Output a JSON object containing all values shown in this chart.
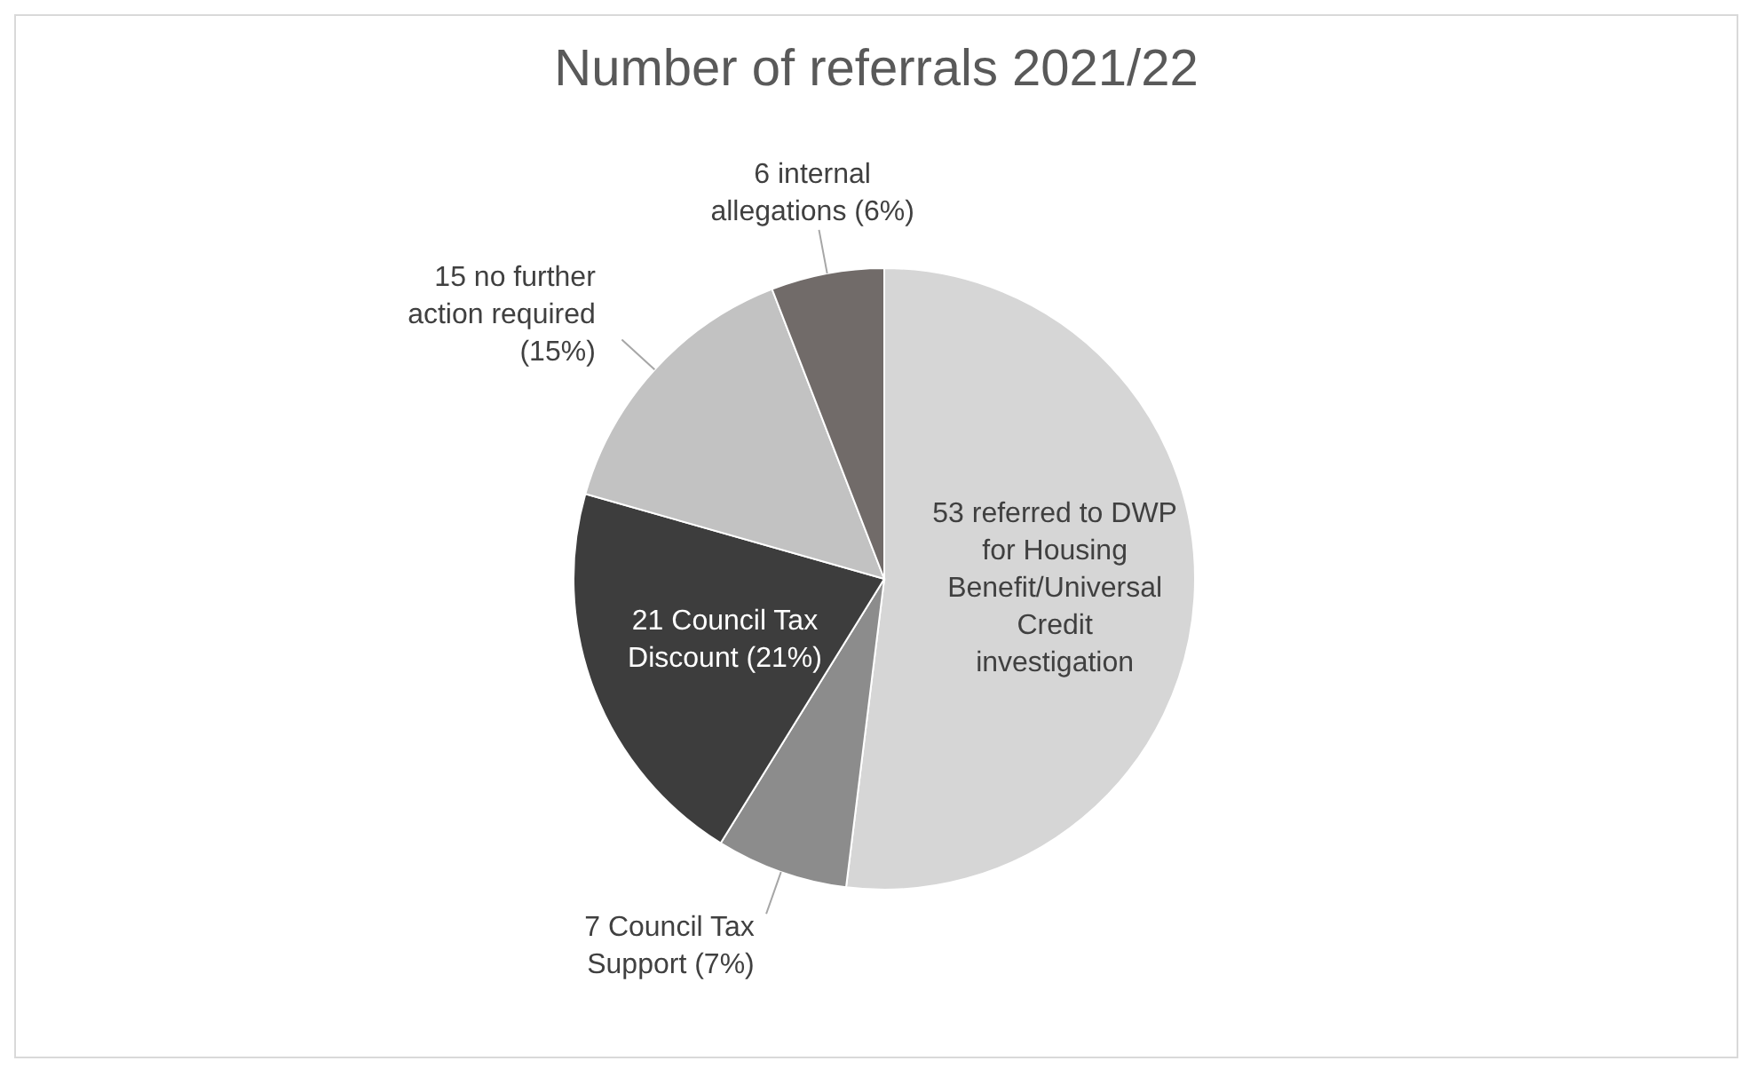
{
  "chart_data": {
    "type": "pie",
    "title": "Number of referrals 2021/22",
    "categories": [
      "53 referred to DWP for Housing Benefit/Universal Credit investigation",
      "7 Council Tax Support (7%)",
      "21 Council Tax Discount (21%)",
      "15 no further action required (15%)",
      "6 internal allegations (6%)"
    ],
    "values": [
      53,
      7,
      21,
      15,
      6
    ],
    "colors": [
      "#d6d6d6",
      "#8c8c8c",
      "#3d3d3d",
      "#c2c2c2",
      "#716b69"
    ],
    "legend": false
  }
}
